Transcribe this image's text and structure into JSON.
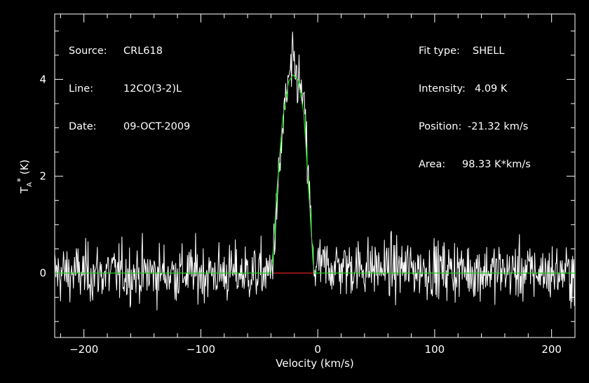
{
  "info_left": [
    {
      "label": "Source:",
      "value": "CRL618"
    },
    {
      "label": "Line:",
      "value": "12CO(3-2)L"
    },
    {
      "label": "Date:",
      "value": "09-OCT-2009"
    }
  ],
  "info_right": [
    {
      "label": "Fit type:",
      "value": "SHELL"
    },
    {
      "label": "Intensity:",
      "value": "4.09 K"
    },
    {
      "label": "Position:",
      "value": "-21.32 km/s"
    },
    {
      "label": "Area:",
      "value": "98.33 K*km/s"
    }
  ],
  "colors": {
    "background": "#000000",
    "axes": "#ffffff",
    "spectrum": "#ffffff",
    "fit": "#22cc22",
    "baseline": "#dd2222"
  },
  "chart_data": {
    "type": "line",
    "xlabel": "Velocity (km/s)",
    "ylabel": "T_A^* (K)",
    "xlim": [
      -225,
      220
    ],
    "ylim": [
      -1.33,
      5.35
    ],
    "xticks": [
      -200,
      -100,
      0,
      100,
      200
    ],
    "xtick_labels": [
      "−200",
      "−100",
      "0",
      "100",
      "200"
    ],
    "yticks": [
      0,
      2,
      4
    ],
    "ytick_labels": [
      "0",
      "2",
      "4"
    ],
    "grid": false,
    "series": [
      {
        "role": "spectrum",
        "noise_rms_K": 0.3,
        "channel_width_kms": 0.5,
        "profile_x": [
          -225,
          -40,
          -36,
          -30,
          -25,
          -21,
          -17,
          -12,
          -8,
          -4,
          220
        ],
        "profile_y": [
          0,
          0,
          1.0,
          3.0,
          3.95,
          4.3,
          4.0,
          3.5,
          2.0,
          0.15,
          0
        ]
      },
      {
        "role": "fit",
        "type": "SHELL",
        "x": [
          -225,
          -40,
          -38,
          -35,
          -30,
          -25,
          -21.32,
          -17,
          -12,
          -7,
          -4,
          -3,
          220
        ],
        "y": [
          0,
          0,
          0.5,
          1.7,
          3.2,
          3.95,
          4.09,
          4.0,
          3.3,
          1.4,
          0.2,
          0,
          0
        ]
      },
      {
        "role": "baseline-window",
        "x": [
          -38,
          -4
        ],
        "y": [
          0,
          0
        ]
      }
    ]
  }
}
